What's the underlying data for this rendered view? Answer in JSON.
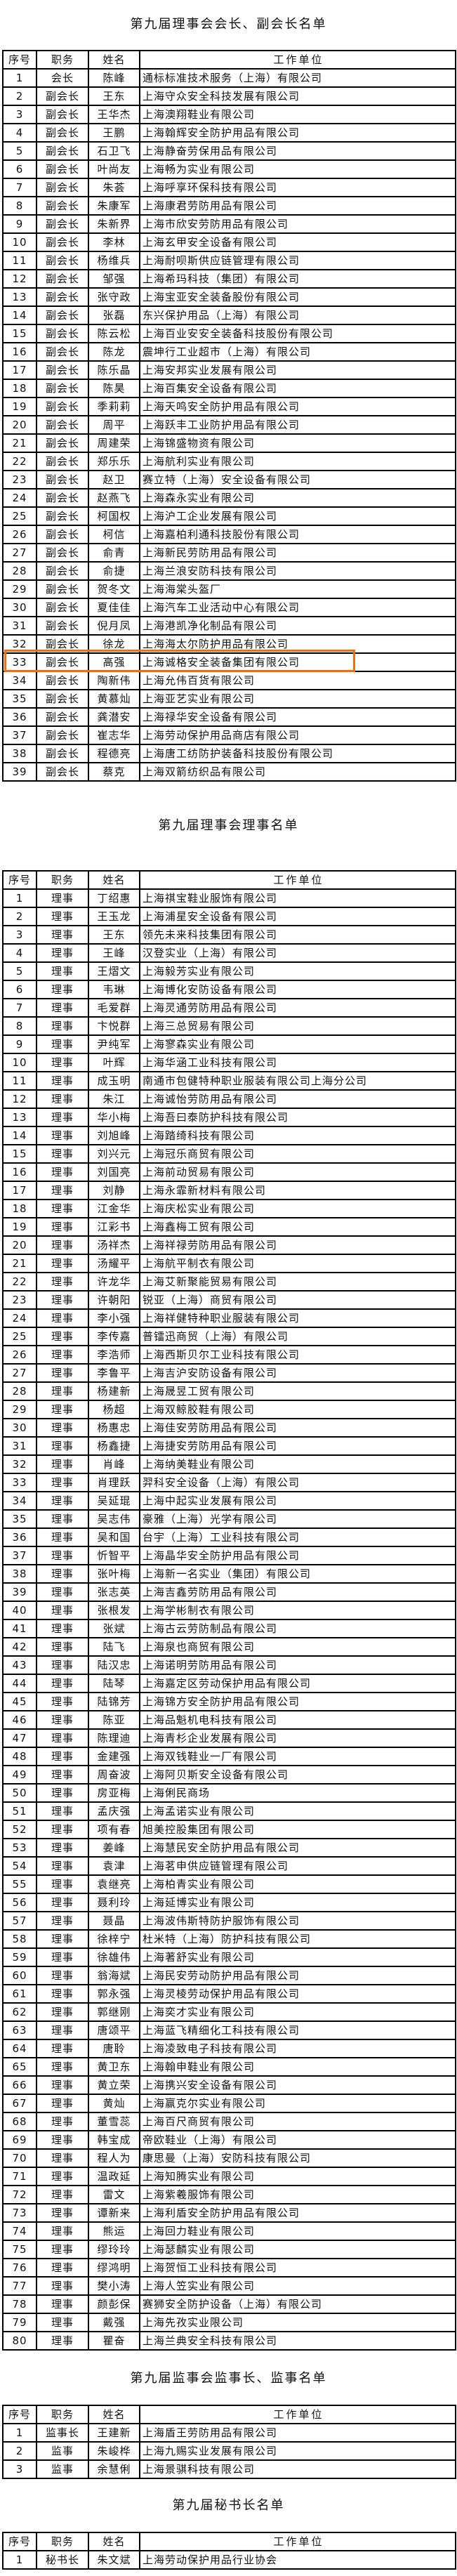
{
  "colors": {
    "highlight": "#f07010",
    "border": "#000000"
  },
  "headers": [
    "序号",
    "职务",
    "姓名",
    "工作单位"
  ],
  "sections": [
    {
      "title": "第九届理事会会长、副会长名单",
      "highlight_row": 33,
      "rows": [
        [
          "1",
          "会长",
          "陈峰",
          "通标标准技术服务（上海）有限公司"
        ],
        [
          "2",
          "副会长",
          "王东",
          "上海守众安全科技发展有限公司"
        ],
        [
          "3",
          "副会长",
          "王华杰",
          "上海澳翔鞋业有限公司"
        ],
        [
          "4",
          "副会长",
          "王鹏",
          "上海翰辉安全防护用品有限公司"
        ],
        [
          "5",
          "副会长",
          "石卫飞",
          "上海静奋劳保用品有限公司"
        ],
        [
          "6",
          "副会长",
          "叶尚友",
          "上海畅为实业有限公司"
        ],
        [
          "7",
          "副会长",
          "朱荟",
          "上海呼享环保科技有限公司"
        ],
        [
          "8",
          "副会长",
          "朱康军",
          "上海康君劳防用品有限公司"
        ],
        [
          "9",
          "副会长",
          "朱新界",
          "上海市欣安劳防用品有限公司"
        ],
        [
          "10",
          "副会长",
          "李林",
          "上海玄甲安全设备有限公司"
        ],
        [
          "11",
          "副会长",
          "杨维兵",
          "上海耐呗斯供应链管理有限公司"
        ],
        [
          "12",
          "副会长",
          "邹强",
          "上海希玛科技（集团）有限公司"
        ],
        [
          "13",
          "副会长",
          "张守政",
          "上海宝亚安全装备股份有限公司"
        ],
        [
          "14",
          "副会长",
          "张磊",
          "东兴保护用品（上海）有限公司"
        ],
        [
          "15",
          "副会长",
          "陈云松",
          "上海百业安安全装备科技股份有限公司"
        ],
        [
          "16",
          "副会长",
          "陈龙",
          "震坤行工业超市（上海）有限公司"
        ],
        [
          "17",
          "副会长",
          "陈乐晶",
          "上海安邦实业发展有限公司"
        ],
        [
          "18",
          "副会长",
          "陈昊",
          "上海百集安全设备有限公司"
        ],
        [
          "19",
          "副会长",
          "季莉莉",
          "上海天鸣安全防护用品有限公司"
        ],
        [
          "20",
          "副会长",
          "周平",
          "上海跃丰工业防护用品有限公司"
        ],
        [
          "21",
          "副会长",
          "周建荣",
          "上海锦盛物资有限公司"
        ],
        [
          "22",
          "副会长",
          "郑乐乐",
          "上海航利实业有限公司"
        ],
        [
          "23",
          "副会长",
          "赵卫",
          "赛立特（上海）安全设备有限公司"
        ],
        [
          "24",
          "副会长",
          "赵燕飞",
          "上海森永实业有限公司"
        ],
        [
          "25",
          "副会长",
          "柯国权",
          "上海沪工企业发展有限公司"
        ],
        [
          "26",
          "副会长",
          "柯信",
          "上海嘉柏利通科技股份有限公司"
        ],
        [
          "27",
          "副会长",
          "俞青",
          "上海新民劳防用品有限公司"
        ],
        [
          "28",
          "副会长",
          "俞捷",
          "上海兰浪安防科技有限公司"
        ],
        [
          "29",
          "副会长",
          "贺冬文",
          "上海海棠头盔厂"
        ],
        [
          "30",
          "副会长",
          "夏佳佳",
          "上海汽车工业活动中心有限公司"
        ],
        [
          "31",
          "副会长",
          "倪月凤",
          "上海港凯净化制品有限公司"
        ],
        [
          "32",
          "副会长",
          "徐龙",
          "上海海太尔防护用品有限公司"
        ],
        [
          "33",
          "副会长",
          "高强",
          "上海诚格安全装备集团有限公司"
        ],
        [
          "34",
          "副会长",
          "陶新伟",
          "上海允伟百货有限公司"
        ],
        [
          "35",
          "副会长",
          "黄慕灿",
          "上海亚艺实业有限公司"
        ],
        [
          "36",
          "副会长",
          "龚潜安",
          "上海禄华安全设备有限公司"
        ],
        [
          "37",
          "副会长",
          "崔志华",
          "上海劳动保护用品商店有限公司"
        ],
        [
          "38",
          "副会长",
          "程德亮",
          "上海唐工纺防护装备科技股份有限公司"
        ],
        [
          "39",
          "副会长",
          "蔡克",
          "上海双箭纺织品有限公司"
        ]
      ]
    },
    {
      "title": "第九届理事会理事名单",
      "rows": [
        [
          "1",
          "理事",
          "丁绍惠",
          "上海祺宝鞋业服饰有限公司"
        ],
        [
          "2",
          "理事",
          "王玉龙",
          "上海浦星安全设备有限公司"
        ],
        [
          "3",
          "理事",
          "王东",
          "领先未来科技集团有限公司"
        ],
        [
          "4",
          "理事",
          "王峰",
          "汉登实业（上海）有限公司"
        ],
        [
          "5",
          "理事",
          "王熠文",
          "上海毅芳实业有限公司"
        ],
        [
          "6",
          "理事",
          "韦琳",
          "上海博化安防设备有限公司"
        ],
        [
          "7",
          "理事",
          "毛爱群",
          "上海灵通劳防用品有限公司"
        ],
        [
          "8",
          "理事",
          "卞悦群",
          "上海三总贸易有限公司"
        ],
        [
          "9",
          "理事",
          "尹纯军",
          "上海寥森实业有限公司"
        ],
        [
          "10",
          "理事",
          "叶辉",
          "上海华涵工业科技有限公司"
        ],
        [
          "11",
          "理事",
          "成玉明",
          "南通市包健特种职业服装有限公司上海分公司"
        ],
        [
          "12",
          "理事",
          "朱江",
          "上海诚怡劳防用品有限公司"
        ],
        [
          "13",
          "理事",
          "华小梅",
          "上海吾曰泰防护科技有限公司"
        ],
        [
          "14",
          "理事",
          "刘旭峰",
          "上海踏绮科技有限公司"
        ],
        [
          "15",
          "理事",
          "刘兴元",
          "上海冠乐商贸有限公司"
        ],
        [
          "16",
          "理事",
          "刘国亮",
          "上海前动贸易有限公司"
        ],
        [
          "17",
          "理事",
          "刘静",
          "上海永霏新材料有限公司"
        ],
        [
          "18",
          "理事",
          "江金华",
          "上海庆松实业有限公司"
        ],
        [
          "19",
          "理事",
          "江彩书",
          "上海鑫梅工贸有限公司"
        ],
        [
          "20",
          "理事",
          "汤祥杰",
          "上海祥禄劳防用品有限公司"
        ],
        [
          "21",
          "理事",
          "汤耀平",
          "上海航平制衣有限公司"
        ],
        [
          "22",
          "理事",
          "许龙华",
          "上海艾新聚能贸易有限公司"
        ],
        [
          "23",
          "理事",
          "许朝阳",
          "锐亚（上海）商贸有限公司"
        ],
        [
          "24",
          "理事",
          "李小强",
          "上海祥健特种职业服装有限公司"
        ],
        [
          "25",
          "理事",
          "李传嘉",
          "普镭迅商贸（上海）有限公司"
        ],
        [
          "26",
          "理事",
          "李浩师",
          "上海西斯贝尔工业科技有限公司"
        ],
        [
          "27",
          "理事",
          "李鲁平",
          "上海吉沪安防设备有限公司"
        ],
        [
          "28",
          "理事",
          "杨建新",
          "上海晟昱工贸有限公司"
        ],
        [
          "29",
          "理事",
          "杨超",
          "上海双鲸胶鞋有限公司"
        ],
        [
          "30",
          "理事",
          "杨惠忠",
          "上海佳安劳防用品有限公司"
        ],
        [
          "31",
          "理事",
          "杨鑫捷",
          "上海捷安劳防用品有限公司"
        ],
        [
          "32",
          "理事",
          "肖峰",
          "上海纳美鞋业有限公司"
        ],
        [
          "33",
          "理事",
          "肖理跃",
          "羿科安全设备（上海）有限公司"
        ],
        [
          "34",
          "理事",
          "吴延琨",
          "上海中起实业发展有限公司"
        ],
        [
          "35",
          "理事",
          "吴志伟",
          "豪雅（上海）光学有限公司"
        ],
        [
          "36",
          "理事",
          "吴和国",
          "台宇（上海）工业科技有限公司"
        ],
        [
          "37",
          "理事",
          "忻智平",
          "上海晶华安全防护用品有限公司"
        ],
        [
          "38",
          "理事",
          "张叶梅",
          "上海新一名实业（集团）有限公司"
        ],
        [
          "39",
          "理事",
          "张志英",
          "上海吉鑫劳防用品有限公司"
        ],
        [
          "40",
          "理事",
          "张根发",
          "上海学彬制衣有限公司"
        ],
        [
          "41",
          "理事",
          "张斌",
          "上海古云劳防制品有限公司"
        ],
        [
          "42",
          "理事",
          "陆飞",
          "上海泉也商贸有限公司"
        ],
        [
          "43",
          "理事",
          "陆汉忠",
          "上海诺明劳防用品有限公司"
        ],
        [
          "44",
          "理事",
          "陆琴",
          "上海嘉定区劳动保护用品有限公司"
        ],
        [
          "45",
          "理事",
          "陆锦芳",
          "上海锦方安全防护用品有限公司"
        ],
        [
          "46",
          "理事",
          "陈亚",
          "上海品魁机电科技有限公司"
        ],
        [
          "47",
          "理事",
          "陈理迪",
          "上海青杉企业发展有限公司"
        ],
        [
          "48",
          "理事",
          "金建强",
          "上海双钱鞋业一厂有限公司"
        ],
        [
          "49",
          "理事",
          "周奋波",
          "上海阿贝斯安全设备有限公司"
        ],
        [
          "50",
          "理事",
          "房亚梅",
          "上海俐民商场"
        ],
        [
          "51",
          "理事",
          "孟庆强",
          "上海孟诺实业有限公司"
        ],
        [
          "52",
          "理事",
          "项有春",
          "旭美控股集团有限公司"
        ],
        [
          "53",
          "理事",
          "姜峰",
          "上海慧民安全防护用品有限公司"
        ],
        [
          "54",
          "理事",
          "袁津",
          "上海茗申供应链管理有限公司"
        ],
        [
          "55",
          "理事",
          "袁继亮",
          "上海柏青实业有限公司"
        ],
        [
          "56",
          "理事",
          "聂利玲",
          "上海延博实业有限公司"
        ],
        [
          "57",
          "理事",
          "聂晶",
          "上海波伟斯特防护服饰有限公司"
        ],
        [
          "58",
          "理事",
          "徐梓宁",
          "杜米特（上海）防护科技有限公司"
        ],
        [
          "59",
          "理事",
          "徐雄伟",
          "上海著舒实业有限公司"
        ],
        [
          "60",
          "理事",
          "翁海斌",
          "上海民安劳动防护用品有限公司"
        ],
        [
          "61",
          "理事",
          "郭永强",
          "上海灵棱劳动保护用品有限公司"
        ],
        [
          "62",
          "理事",
          "郭继刚",
          "上海奕才实业有限公司"
        ],
        [
          "63",
          "理事",
          "唐颂平",
          "上海蓝飞精细化工科技有限公司"
        ],
        [
          "64",
          "理事",
          "唐聆",
          "上海凌致电子科技有限公司"
        ],
        [
          "65",
          "理事",
          "黄卫东",
          "上海翰申鞋业有限公司"
        ],
        [
          "66",
          "理事",
          "黄立荣",
          "上海携兴安全设备有限公司"
        ],
        [
          "67",
          "理事",
          "黄灿",
          "上海赢克尔实业有限公司"
        ],
        [
          "68",
          "理事",
          "董雪蕊",
          "上海百尺商贸有限公司"
        ],
        [
          "69",
          "理事",
          "韩宝成",
          "帝欧鞋业（上海）有限公司"
        ],
        [
          "70",
          "理事",
          "程人为",
          "康思曼（上海）安防科技有限公司"
        ],
        [
          "71",
          "理事",
          "温政延",
          "上海知腾实业有限公司"
        ],
        [
          "72",
          "理事",
          "雷文",
          "上海紫羲服饰有限公司"
        ],
        [
          "73",
          "理事",
          "谭新来",
          "上海利盾安全防护用品有限公司"
        ],
        [
          "74",
          "理事",
          "熊运",
          "上海回力鞋业有限公司"
        ],
        [
          "75",
          "理事",
          "缪玲玲",
          "上海瑟麟实业有限公司"
        ],
        [
          "76",
          "理事",
          "缪鸿明",
          "上海贺恒工业科技有限公司"
        ],
        [
          "77",
          "理事",
          "樊小涛",
          "上海人笠实业有限公司"
        ],
        [
          "78",
          "理事",
          "颜彭保",
          "赛狮安全防护设备（上海）有限公司"
        ],
        [
          "79",
          "理事",
          "戴强",
          "上海先孜实业限公司"
        ],
        [
          "80",
          "理事",
          "瞿奋",
          "上海兰典安全科技有限公司"
        ]
      ]
    },
    {
      "title": "第九届监事会监事长、监事名单",
      "rows": [
        [
          "1",
          "监事长",
          "王建新",
          "上海盾王劳防用品有限公司"
        ],
        [
          "2",
          "监事",
          "朱峻桦",
          "上海九赐实业发展有限公司"
        ],
        [
          "3",
          "监事",
          "余慧俐",
          "上海景骐科技有限公司"
        ]
      ]
    },
    {
      "title": "第九届秘书长名单",
      "rows": [
        [
          "1",
          "秘书长",
          "朱文斌",
          "上海劳动保护用品行业协会"
        ]
      ]
    }
  ]
}
